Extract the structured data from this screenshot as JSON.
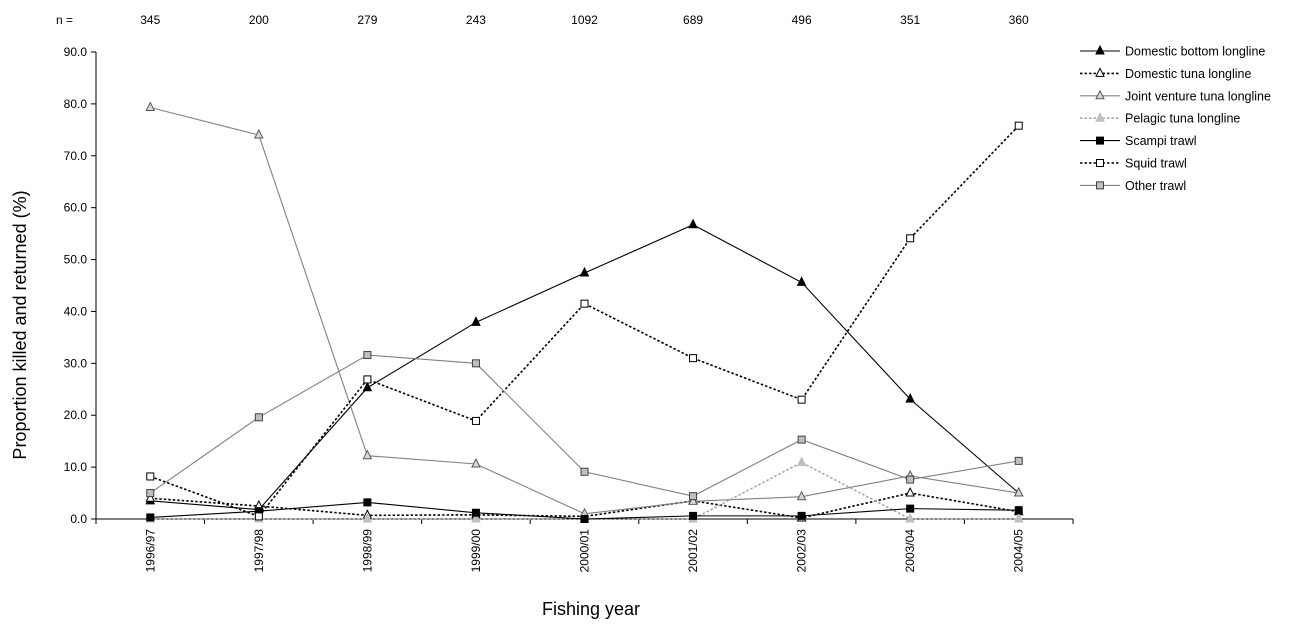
{
  "chart_data": {
    "type": "line",
    "title": "",
    "xlabel": "Fishing year",
    "ylabel": "Proportion killed and returned (%)",
    "ylim": [
      0,
      90
    ],
    "yticks": [
      "0.0",
      "10.0",
      "20.0",
      "30.0",
      "40.0",
      "50.0",
      "60.0",
      "70.0",
      "80.0",
      "90.0"
    ],
    "categories": [
      "1996/97",
      "1997/98",
      "1998/99",
      "1999/00",
      "2000/01",
      "2001/02",
      "2002/03",
      "2003/04",
      "2004/05"
    ],
    "n_prefix": "n =",
    "n_values": [
      "345",
      "200",
      "279",
      "243",
      "1092",
      "689",
      "496",
      "351",
      "360"
    ],
    "grid": false,
    "legend_position": "right",
    "series": [
      {
        "name": "Domestic bottom longline",
        "color": "#000000",
        "dash": "solid",
        "marker": "triangle-filled",
        "values": [
          3.5,
          1.8,
          25.3,
          37.9,
          47.4,
          56.7,
          45.6,
          23.1,
          5.0
        ]
      },
      {
        "name": "Domestic tuna longline",
        "color": "#000000",
        "dash": "dotted",
        "marker": "triangle-open",
        "values": [
          4.0,
          2.5,
          0.7,
          0.8,
          0.5,
          3.5,
          0.2,
          5.0,
          1.4
        ]
      },
      {
        "name": "Joint venture tuna longline",
        "color": "#808080",
        "dash": "solid",
        "marker": "triangle-gray",
        "values": [
          79.3,
          74.0,
          12.2,
          10.6,
          1.0,
          3.4,
          4.3,
          8.3,
          5.0
        ]
      },
      {
        "name": "Pelagic tuna longline",
        "color": "#a6a6a6",
        "dash": "dotted",
        "marker": "triangle-light",
        "values": [
          0.0,
          0.0,
          0.0,
          0.0,
          0.0,
          0.0,
          10.9,
          0.0,
          0.0
        ]
      },
      {
        "name": "Scampi trawl",
        "color": "#000000",
        "dash": "solid",
        "marker": "square-filled",
        "values": [
          0.3,
          1.5,
          3.2,
          1.2,
          0.0,
          0.6,
          0.6,
          2.0,
          1.7
        ]
      },
      {
        "name": "Squid trawl",
        "color": "#000000",
        "dash": "dotted",
        "marker": "square-open",
        "values": [
          8.2,
          0.5,
          26.9,
          18.9,
          41.5,
          31.0,
          23.0,
          54.1,
          75.8
        ]
      },
      {
        "name": "Other trawl",
        "color": "#808080",
        "dash": "solid",
        "marker": "square-gray",
        "values": [
          5.0,
          19.6,
          31.6,
          30.0,
          9.1,
          4.4,
          15.3,
          7.6,
          11.2
        ]
      }
    ]
  }
}
